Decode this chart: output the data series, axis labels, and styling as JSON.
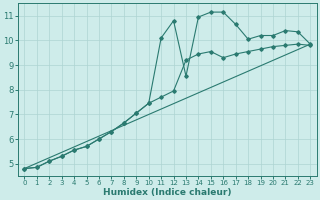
{
  "xlabel": "Humidex (Indice chaleur)",
  "background_color": "#ceecea",
  "grid_color": "#aed4d2",
  "line_color": "#2a7a70",
  "xlim": [
    -0.5,
    23.5
  ],
  "ylim": [
    4.5,
    11.5
  ],
  "xticks": [
    0,
    1,
    2,
    3,
    4,
    5,
    6,
    7,
    8,
    9,
    10,
    11,
    12,
    13,
    14,
    15,
    16,
    17,
    18,
    19,
    20,
    21,
    22,
    23
  ],
  "yticks": [
    5,
    6,
    7,
    8,
    9,
    10,
    11
  ],
  "curve1_x": [
    0,
    1,
    2,
    3,
    4,
    5,
    6,
    7,
    8,
    9,
    10,
    11,
    12,
    13,
    14,
    15,
    16,
    17,
    18,
    19,
    20,
    21,
    22,
    23
  ],
  "curve1_y": [
    4.8,
    4.85,
    5.1,
    5.3,
    5.55,
    5.7,
    6.0,
    6.3,
    6.65,
    7.05,
    7.45,
    10.1,
    10.8,
    8.55,
    10.95,
    11.15,
    11.15,
    10.65,
    10.05,
    10.2,
    10.2,
    10.4,
    10.35,
    9.85
  ],
  "curve2_x": [
    0,
    1,
    2,
    3,
    4,
    5,
    6,
    7,
    8,
    9,
    10,
    11,
    12,
    13,
    14,
    15,
    16,
    17,
    18,
    19,
    20,
    21,
    22,
    23
  ],
  "curve2_y": [
    4.8,
    4.85,
    5.1,
    5.3,
    5.55,
    5.7,
    6.0,
    6.3,
    6.65,
    7.05,
    7.45,
    7.7,
    7.95,
    9.2,
    9.45,
    9.55,
    9.3,
    9.45,
    9.55,
    9.65,
    9.75,
    9.8,
    9.85,
    9.8
  ],
  "line_x": [
    0,
    23
  ],
  "line_y": [
    4.8,
    9.85
  ]
}
